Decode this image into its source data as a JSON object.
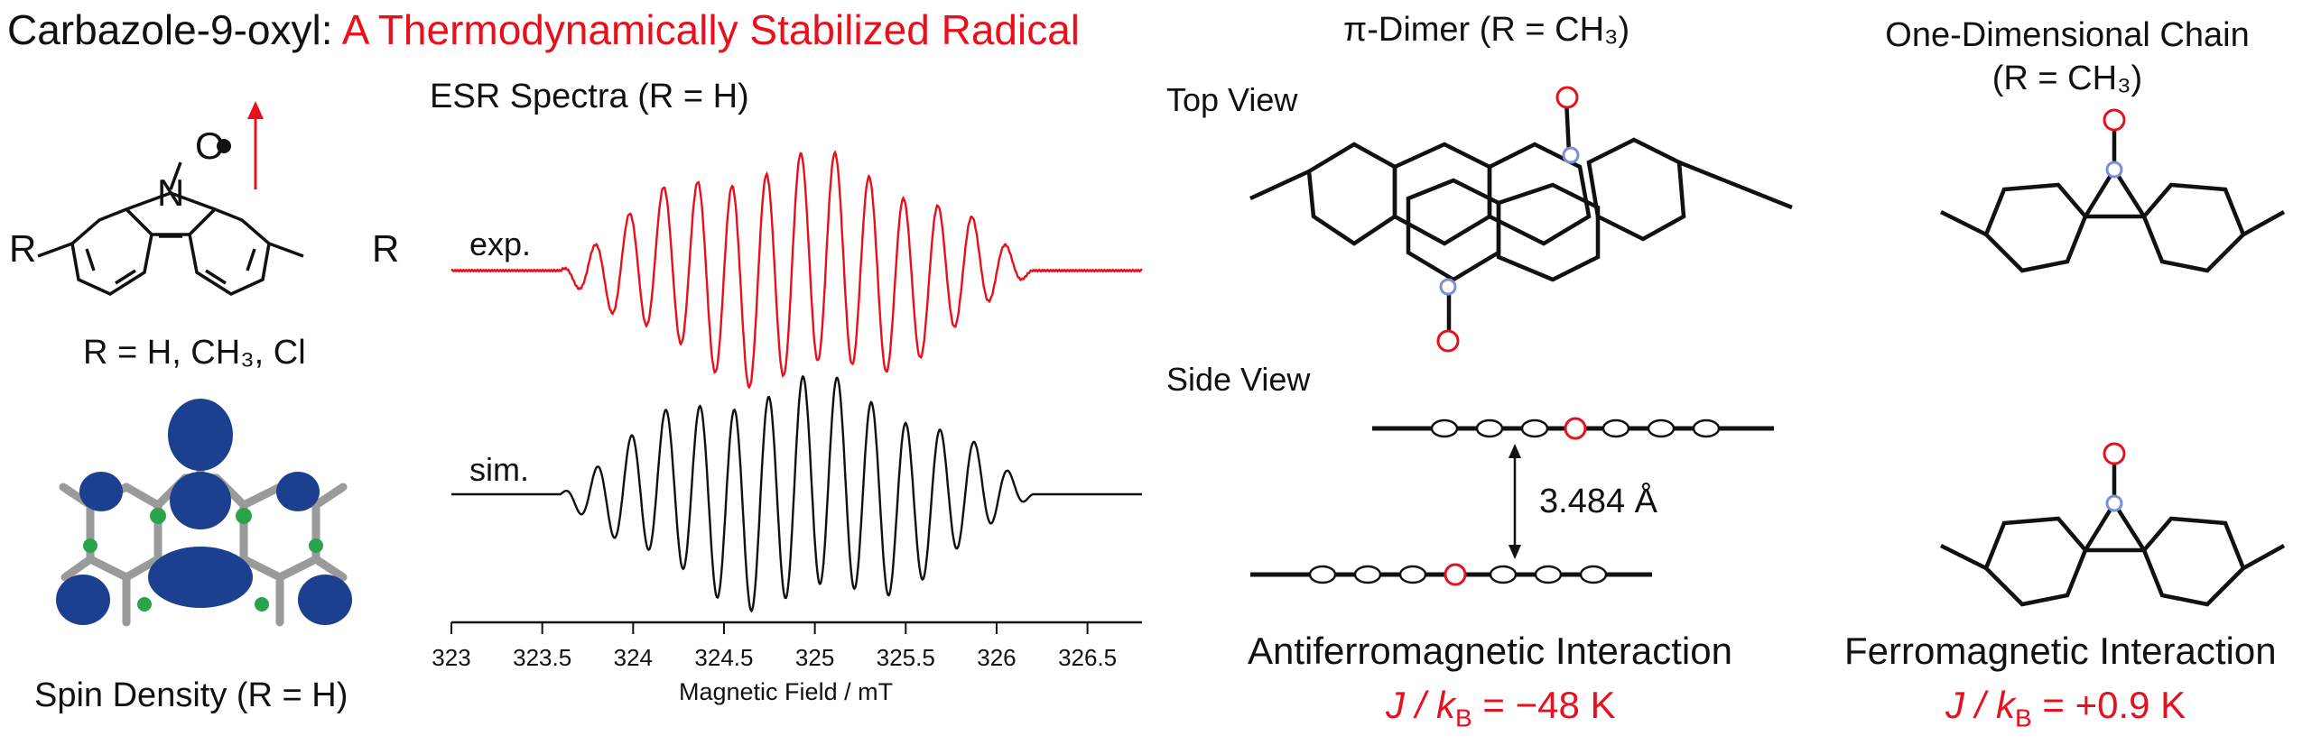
{
  "title": {
    "prefix": "Carbazole-9-oxyl: ",
    "highlight": "A Thermodynamically Stabilized Radical"
  },
  "structure": {
    "o_label": "O",
    "n_label": "N",
    "r_left": "R",
    "r_right": "R",
    "caption": "R = H, CH₃, Cl"
  },
  "spin_density": {
    "caption": "Spin Density (R = H)"
  },
  "esr": {
    "title": "ESR Spectra (R = H)",
    "exp_label": "exp.",
    "sim_label": "sim.",
    "xlabel": "Magnetic Field / mT"
  },
  "chart_data": {
    "type": "line",
    "title": "ESR Spectra (R = H)",
    "xlabel": "Magnetic Field / mT",
    "ylabel": "",
    "xlim": [
      323,
      326.8
    ],
    "xticks": [
      "323",
      "323.5",
      "324",
      "324.5",
      "325",
      "325.5",
      "326",
      "326.5"
    ],
    "xtick_values": [
      323,
      323.5,
      324,
      324.5,
      325,
      325.5,
      326,
      326.5
    ],
    "center": 324.9,
    "half_width": 1.3,
    "series": [
      {
        "name": "exp.",
        "color": "#e8101c"
      },
      {
        "name": "sim.",
        "color": "#111111"
      }
    ]
  },
  "dimer": {
    "title": "π-Dimer (R = CH₃)",
    "top_view": "Top View",
    "side_view": "Side View",
    "distance": "3.484 Å",
    "interaction": "Antiferromagnetic Interaction",
    "j_value": "J / k",
    "j_sub": "B",
    "j_rest": " = −48 K"
  },
  "chain": {
    "title_line1": "One-Dimensional Chain",
    "title_line2": "(R = CH₃)",
    "interaction": "Ferromagnetic Interaction",
    "j_value": "J / k",
    "j_sub": "B",
    "j_rest": " = +0.9 K"
  },
  "colors": {
    "accent": "#e8101c",
    "spin_lobe": "#1d3f8f",
    "nitrogen": "#7a8fd6",
    "oxygen": "#e8101c"
  }
}
